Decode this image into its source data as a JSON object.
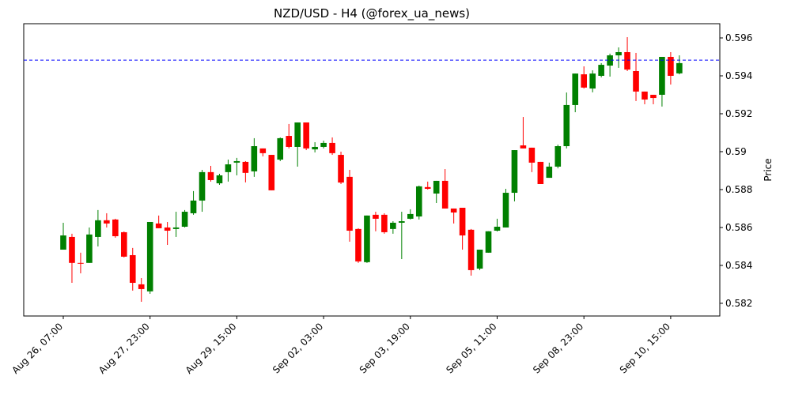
{
  "chart_data": {
    "type": "candlestick",
    "title": "NZD/USD - H4 (@forex_ua_news)",
    "y_label": "Price",
    "categories": [
      "Aug 26, 07:00",
      null,
      null,
      null,
      null,
      null,
      null,
      null,
      null,
      null,
      "Aug 27, 23:00",
      null,
      null,
      null,
      null,
      null,
      null,
      null,
      null,
      null,
      "Aug 29, 15:00",
      null,
      null,
      null,
      null,
      null,
      null,
      null,
      null,
      null,
      "Sep 02, 03:00",
      null,
      null,
      null,
      null,
      null,
      null,
      null,
      null,
      null,
      "Sep 03, 19:00",
      null,
      null,
      null,
      null,
      null,
      null,
      null,
      null,
      null,
      "Sep 05, 11:00",
      null,
      null,
      null,
      null,
      null,
      null,
      null,
      null,
      null,
      "Sep 08, 23:00",
      null,
      null,
      null,
      null,
      null,
      null,
      null,
      null,
      null,
      "Sep 10, 15:00",
      null
    ],
    "open": [
      0.58483,
      0.5855,
      0.58413,
      0.58413,
      0.5855,
      0.58638,
      0.58642,
      0.58575,
      0.58454,
      0.583,
      0.58263,
      0.58621,
      0.586,
      0.58592,
      0.58604,
      0.58675,
      0.58742,
      0.58892,
      0.58833,
      0.58892,
      0.58942,
      0.58946,
      0.58896,
      0.59017,
      0.58983,
      0.58958,
      0.59083,
      0.59025,
      0.59154,
      0.59012,
      0.59025,
      0.59046,
      0.58983,
      0.58867,
      0.58592,
      0.58417,
      0.58667,
      0.58667,
      0.58592,
      0.58625,
      0.58646,
      0.58658,
      0.58813,
      0.58779,
      0.58846,
      0.587,
      0.58704,
      0.58588,
      0.58383,
      0.58467,
      0.58583,
      0.586,
      0.58783,
      0.59033,
      0.59021,
      0.58946,
      0.58862,
      0.58921,
      0.59029,
      0.59246,
      0.59408,
      0.59333,
      0.594,
      0.59454,
      0.59508,
      0.59525,
      0.59425,
      0.59317,
      0.593,
      0.593,
      0.595,
      0.59413
    ],
    "high": [
      0.58625,
      0.58567,
      0.58467,
      0.586,
      0.58692,
      0.58675,
      0.58646,
      0.58579,
      0.58492,
      0.58333,
      0.58629,
      0.58663,
      0.58629,
      0.58683,
      0.58692,
      0.58792,
      0.58904,
      0.58925,
      0.58883,
      0.58958,
      0.58967,
      0.5895,
      0.59071,
      0.59017,
      0.58983,
      0.59075,
      0.59146,
      0.59154,
      0.59154,
      0.5905,
      0.59058,
      0.59075,
      0.59,
      0.58904,
      0.58596,
      0.58663,
      0.58683,
      0.58675,
      0.58633,
      0.58683,
      0.58696,
      0.58821,
      0.58842,
      0.58846,
      0.58908,
      0.587,
      0.58704,
      0.58592,
      0.58483,
      0.5858,
      0.58646,
      0.58804,
      0.59008,
      0.59183,
      0.59021,
      0.58946,
      0.58942,
      0.59037,
      0.59312,
      0.59412,
      0.5945,
      0.59429,
      0.59467,
      0.59517,
      0.5955,
      0.59604,
      0.59521,
      0.59317,
      0.593,
      0.595,
      0.59525,
      0.59508
    ],
    "low": [
      0.58483,
      0.58308,
      0.58358,
      0.58413,
      0.585,
      0.586,
      0.58546,
      0.58442,
      0.58267,
      0.58208,
      0.5825,
      0.58596,
      0.58508,
      0.5855,
      0.586,
      0.58667,
      0.58683,
      0.58842,
      0.58825,
      0.58842,
      0.58875,
      0.58838,
      0.58867,
      0.58975,
      0.58796,
      0.5895,
      0.59017,
      0.58921,
      0.59008,
      0.58996,
      0.59017,
      0.58983,
      0.58829,
      0.58525,
      0.58413,
      0.58413,
      0.5858,
      0.58567,
      0.58567,
      0.58433,
      0.58642,
      0.58642,
      0.588,
      0.58729,
      0.587,
      0.58621,
      0.58483,
      0.58346,
      0.58375,
      0.58467,
      0.58579,
      0.586,
      0.58738,
      0.59017,
      0.58892,
      0.58829,
      0.58862,
      0.58912,
      0.59017,
      0.59208,
      0.59333,
      0.59313,
      0.59392,
      0.59396,
      0.59442,
      0.59425,
      0.59267,
      0.5925,
      0.5925,
      0.59238,
      0.59354,
      0.59408
    ],
    "close": [
      0.58558,
      0.58413,
      0.5841,
      0.58563,
      0.58638,
      0.58621,
      0.58554,
      0.58446,
      0.58308,
      0.58275,
      0.58629,
      0.58596,
      0.58583,
      0.586,
      0.58683,
      0.58742,
      0.58892,
      0.5885,
      0.58875,
      0.58933,
      0.5895,
      0.58888,
      0.59029,
      0.58992,
      0.58796,
      0.59071,
      0.59025,
      0.59154,
      0.59017,
      0.59025,
      0.59046,
      0.58992,
      0.58837,
      0.58583,
      0.58421,
      0.58663,
      0.58646,
      0.58575,
      0.58625,
      0.58633,
      0.58671,
      0.58817,
      0.58804,
      0.58846,
      0.587,
      0.58679,
      0.58558,
      0.58375,
      0.58483,
      0.5858,
      0.58604,
      0.58783,
      0.59008,
      0.59017,
      0.58942,
      0.58829,
      0.58921,
      0.59029,
      0.59246,
      0.59412,
      0.59338,
      0.59412,
      0.59458,
      0.59508,
      0.59525,
      0.59433,
      0.59317,
      0.59275,
      0.59283,
      0.595,
      0.594,
      0.59467
    ],
    "up_color": "#008000",
    "down_color": "#ff0000",
    "hline": 0.59483,
    "hline_color": "#0000ff",
    "ylim": [
      0.58133,
      0.59675
    ],
    "yticks": [
      0.582,
      0.584,
      0.586,
      0.588,
      0.59,
      0.592,
      0.594,
      0.596
    ]
  }
}
